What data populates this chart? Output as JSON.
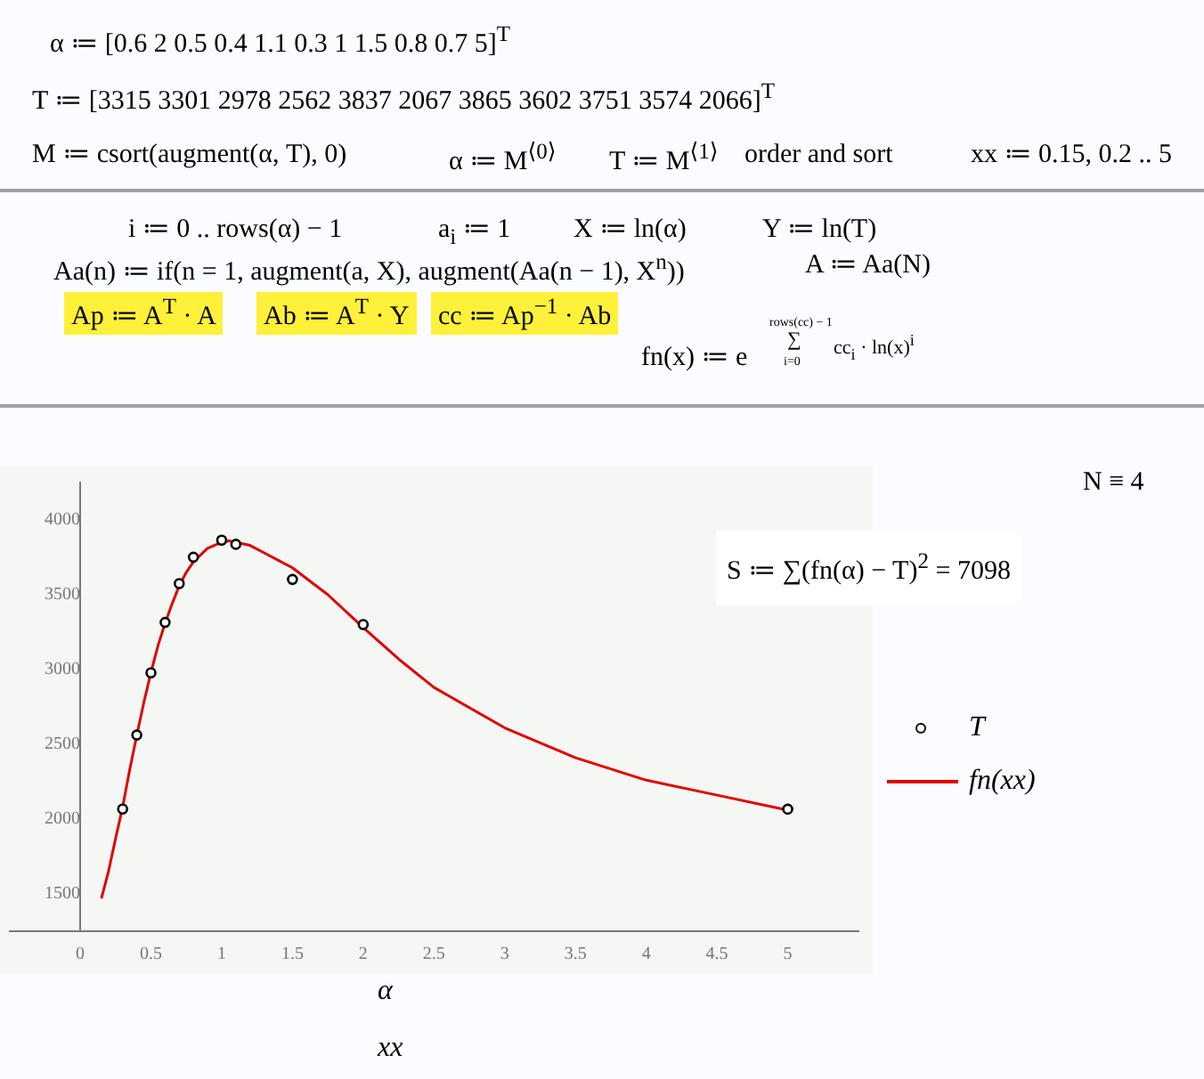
{
  "chart_data": {
    "type": "scatter",
    "xlabel": "α\nxx",
    "xlim": [
      -0.5,
      5.5
    ],
    "ylim": [
      1250,
      4250
    ],
    "xticks": [
      0,
      0.5,
      1,
      1.5,
      2,
      2.5,
      3,
      3.5,
      4,
      4.5,
      5
    ],
    "yticks": [
      1500,
      2000,
      2500,
      3000,
      3500,
      4000
    ],
    "grid": false,
    "legend": "right",
    "series": [
      {
        "name": "T",
        "marker": "circle",
        "color": "#000000",
        "x": [
          0.3,
          0.4,
          0.5,
          0.6,
          0.7,
          0.8,
          1,
          1.1,
          1.5,
          2,
          5
        ],
        "values": [
          2067,
          2562,
          2978,
          3315,
          3574,
          3751,
          3865,
          3837,
          3602,
          3301,
          2066
        ]
      },
      {
        "name": "fn(xx)",
        "type": "line",
        "marker": "none",
        "line_style": "solid",
        "color": "#e00000",
        "x": [
          0.15,
          0.2,
          0.25,
          0.3,
          0.35,
          0.4,
          0.45,
          0.5,
          0.55,
          0.6,
          0.65,
          0.7,
          0.75,
          0.8,
          0.9,
          1,
          1.05,
          1.1,
          1.2,
          1.3,
          1.4,
          1.5,
          1.75,
          2,
          2.25,
          2.5,
          3,
          3.5,
          4,
          4.5,
          5
        ],
        "values": [
          1470,
          1650,
          1870,
          2080,
          2330,
          2560,
          2780,
          2980,
          3160,
          3310,
          3440,
          3560,
          3650,
          3720,
          3810,
          3850,
          3860,
          3850,
          3830,
          3780,
          3730,
          3680,
          3500,
          3280,
          3070,
          2880,
          2610,
          2410,
          2260,
          2160,
          2060
        ]
      }
    ],
    "annotations": [
      "α ≔ [0.6  2  0.5  0.4  1.1  0.3  1  1.5  0.8  0.7  5]$^{T}$",
      "T ≔ [3315  3301  2978  2562  3837  2067  3865  3602  3751  3574  2066]$^{T}$",
      "M ≔ csort(augment(α, T), 0)",
      "α ≔ M$^{⟨0⟩}$",
      "T ≔ M$^{⟨1⟩}$",
      "order and sort",
      "xx ≔ 0.15, 0.2 .. 5",
      "i ≔ 0 .. rows(α) − 1",
      "a$_{i}$ ≔ 1",
      "X ≔ ln(α)",
      "Y ≔ ln(T)",
      "Aa(n) ≔ if(n = 1, augment(a, X), augment(Aa(n − 1), X$^{n}$))",
      "A ≔ Aa(N)",
      "Ap ≔ A$^{T}$ · A",
      "Ab ≔ A$^{T}$ · Y",
      "cc ≔ Ap$^{−1}$ · Ab",
      "fn(x) ≔ e",
      "rows(cc) − 1",
      "∑",
      "i=0",
      "cc$_{i}$ · ln(x)$^{i}$",
      "N ≡ 4",
      "S ≔ ∑(fn(α) − T)$^{2}$ = 7098"
    ]
  }
}
